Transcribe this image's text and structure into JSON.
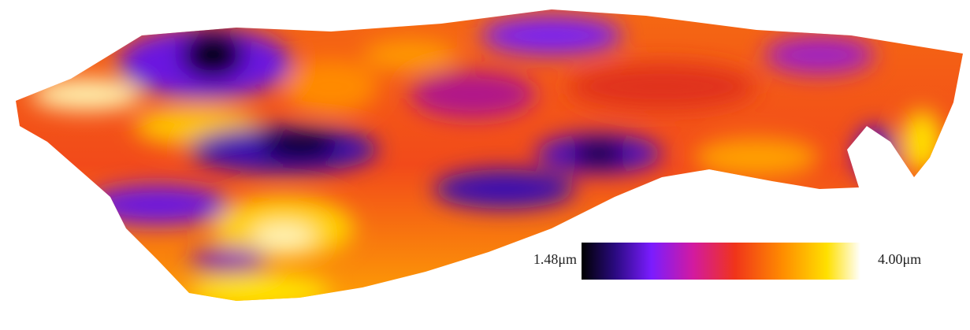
{
  "colorbar": {
    "min_label": "1.48μm",
    "max_label": "4.00μm"
  }
}
